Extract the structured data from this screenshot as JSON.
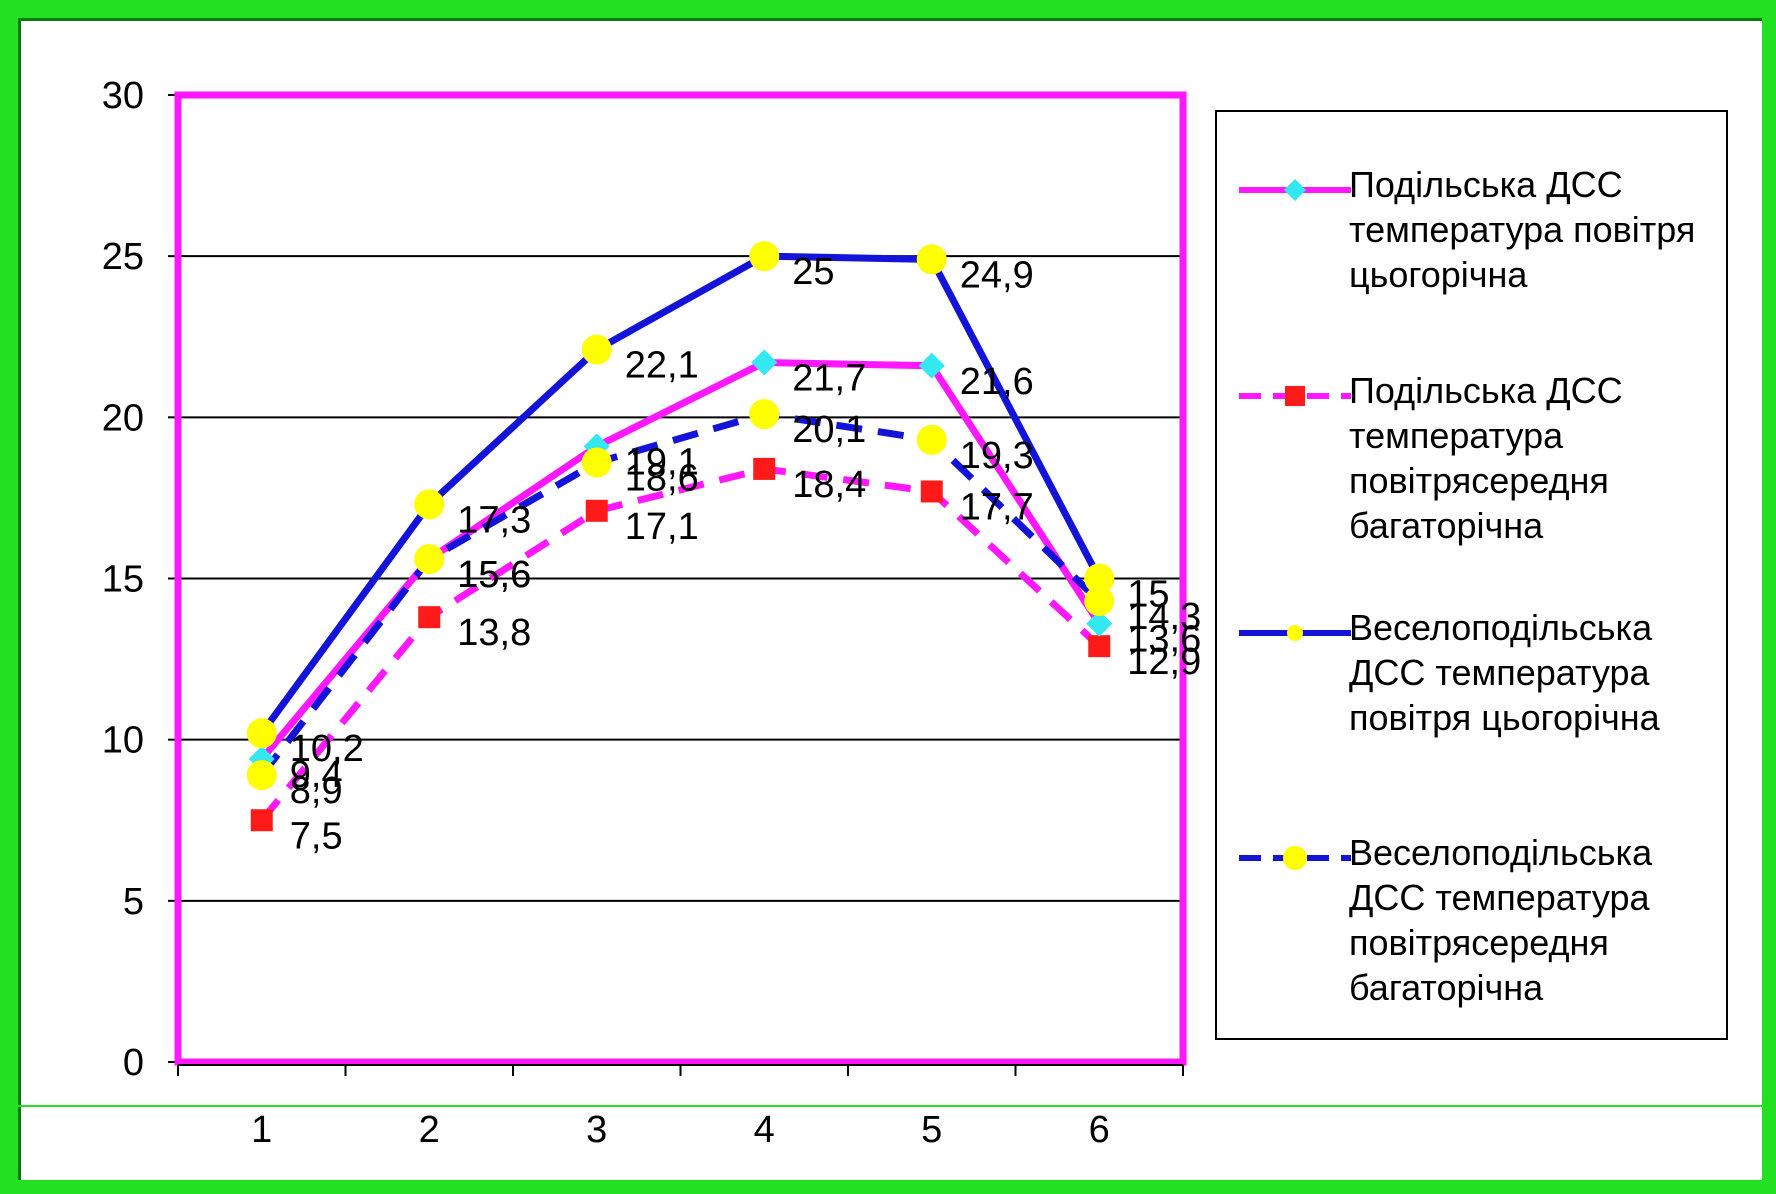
{
  "chart_data": {
    "type": "line",
    "x": [
      1,
      2,
      3,
      4,
      5,
      6
    ],
    "xlim": [
      0.5,
      6.5
    ],
    "ylim": [
      0,
      30
    ],
    "y_ticks": [
      0,
      5,
      10,
      15,
      20,
      25,
      30
    ],
    "grid": true,
    "legend_position": "right",
    "series": [
      {
        "name": "Подільська ДСС температура повітря цьогорічна",
        "values": [
          9.4,
          15.6,
          19.1,
          21.7,
          21.6,
          13.6
        ],
        "color": "#ff17ff",
        "marker": "diamond",
        "marker_color": "#33e8f0",
        "dash": "solid"
      },
      {
        "name": "Подільська ДСС температура повітрясередня багаторічна",
        "values": [
          7.5,
          13.8,
          17.1,
          18.4,
          17.7,
          12.9
        ],
        "color": "#ff17ff",
        "marker": "square",
        "marker_color": "#ff1a1a",
        "dash": "dashed"
      },
      {
        "name": "Веселоподільська ДСС температура повітря цьогорічна",
        "values": [
          10.2,
          17.3,
          22.1,
          25,
          24.9,
          15
        ],
        "color": "#1414d8",
        "marker": "circle",
        "marker_color": "#ffff00",
        "dash": "solid"
      },
      {
        "name": "Веселоподільська ДСС температура повітрясередня багаторічна",
        "values": [
          8.9,
          15.6,
          18.6,
          20.1,
          19.3,
          14.3
        ],
        "color": "#1414d8",
        "marker": "circle",
        "marker_color": "#ffff00",
        "dash": "dashed"
      }
    ],
    "data_labels": [
      [
        "9,4",
        "15,6",
        "19,1",
        "21,7",
        "21,6",
        "13,6"
      ],
      [
        "7,5",
        "13,8",
        "17,1",
        "18,4",
        "17,7",
        "12,9"
      ],
      [
        "10,2",
        "17,3",
        "22,1",
        "25",
        "24,9",
        "15"
      ],
      [
        "8,9",
        "15,6",
        "18,6",
        "20,1",
        "19,3",
        "14,3"
      ]
    ],
    "colors": {
      "frame": "#23e023",
      "plot_border": "#ff17ff",
      "gridline": "#000000"
    }
  }
}
